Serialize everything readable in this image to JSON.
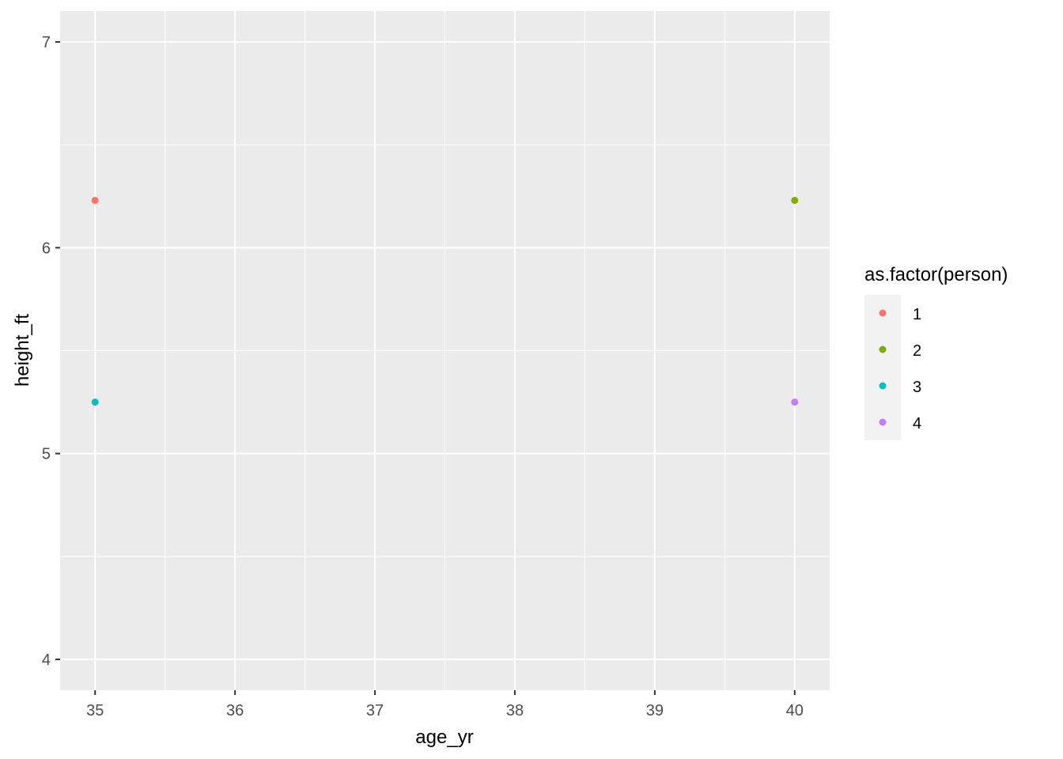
{
  "chart_data": {
    "type": "scatter",
    "xlabel": "age_yr",
    "ylabel": "height_ft",
    "xlim": [
      34.75,
      40.25
    ],
    "ylim": [
      3.85,
      7.15
    ],
    "x_ticks": [
      35,
      36,
      37,
      38,
      39,
      40
    ],
    "x_tick_labels": [
      "35",
      "36",
      "37",
      "38",
      "39",
      "40"
    ],
    "y_ticks": [
      4,
      5,
      6,
      7
    ],
    "y_tick_labels": [
      "4",
      "5",
      "6",
      "7"
    ],
    "grid": true,
    "background": "#ebebeb",
    "legend": {
      "title": "as.factor(person)",
      "placement": "right"
    },
    "series": [
      {
        "name": "1",
        "color": "#F8766D",
        "points": [
          {
            "x": 35,
            "y": 6.23
          }
        ]
      },
      {
        "name": "2",
        "color": "#7CAE00",
        "points": [
          {
            "x": 40,
            "y": 6.23
          }
        ]
      },
      {
        "name": "3",
        "color": "#00BFC4",
        "points": [
          {
            "x": 35,
            "y": 5.25
          }
        ]
      },
      {
        "name": "4",
        "color": "#C77CFF",
        "points": [
          {
            "x": 40,
            "y": 5.25
          }
        ]
      }
    ]
  }
}
